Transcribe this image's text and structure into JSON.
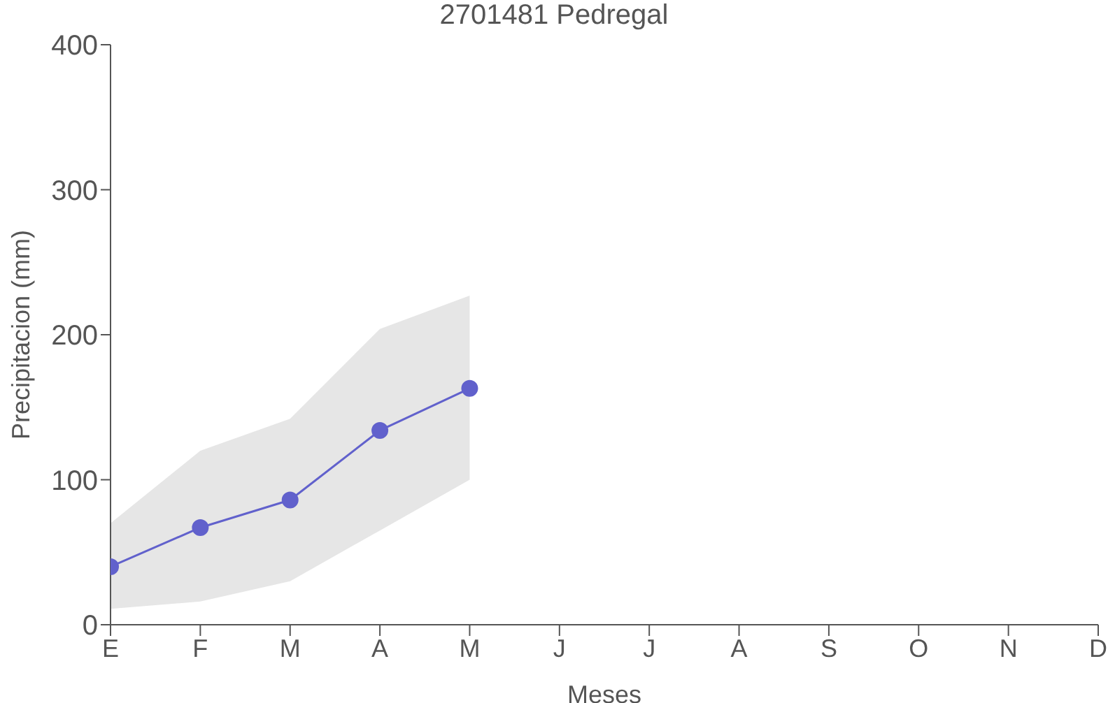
{
  "chart_data": {
    "type": "line",
    "title": "2701481 Pedregal",
    "xlabel": "Meses",
    "ylabel": "Precipitacion (mm)",
    "categories": [
      "E",
      "F",
      "M",
      "A",
      "M",
      "J",
      "J",
      "A",
      "S",
      "O",
      "N",
      "D"
    ],
    "series": [
      {
        "color": "#6161cc",
        "values": [
          40,
          67,
          86,
          134,
          163,
          null,
          null,
          null,
          null,
          null,
          null,
          null
        ],
        "lower": [
          11,
          16,
          30,
          65,
          100,
          null,
          null,
          null,
          null,
          null,
          null,
          null
        ],
        "upper": [
          70,
          120,
          142,
          204,
          227,
          null,
          null,
          null,
          null,
          null,
          null,
          null
        ]
      }
    ],
    "ylim": [
      0,
      400
    ],
    "yticks": [
      0,
      100,
      200,
      300,
      400
    ],
    "marker": "circle",
    "grid": false,
    "legend": false
  }
}
